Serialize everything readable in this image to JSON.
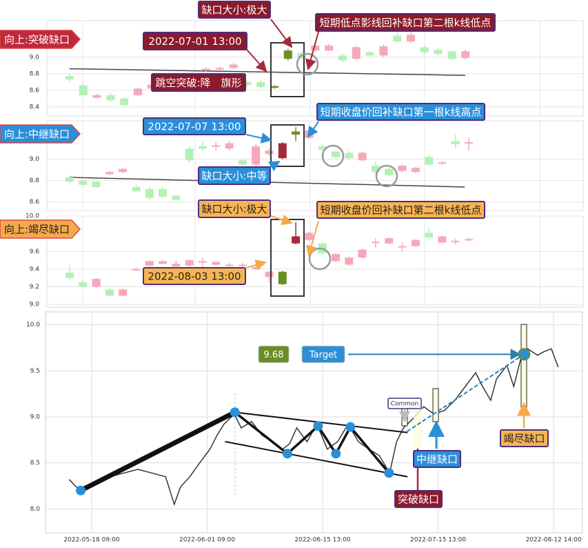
{
  "chart_data": [
    {
      "type": "candlestick",
      "side_label": "向上:突破缺口",
      "labels": [
        "缺口大小:极大",
        "短期低点影线回补缺口第二根k线低点",
        "2022-07-01 13:00",
        "跳空突破:降　旗形"
      ],
      "open": [
        8.77,
        8.66,
        8.51,
        8.54,
        8.5,
        8.54,
        8.62,
        8.7,
        8.74,
        8.78,
        8.84,
        8.85,
        8.87,
        8.7,
        8.7,
        8.65,
        9.08,
        9.05,
        9.08,
        9.08,
        9.02,
        8.98,
        9.06,
        9.02,
        9.26,
        9.19,
        9.12,
        9.09,
        9.07,
        8.99
      ],
      "close": [
        8.73,
        8.54,
        8.54,
        8.48,
        8.42,
        8.62,
        8.67,
        8.74,
        8.78,
        8.8,
        8.86,
        8.87,
        8.91,
        8.66,
        8.64,
        8.63,
        8.98,
        8.99,
        9.14,
        9.14,
        8.96,
        9.12,
        9.02,
        9.13,
        9.19,
        9.27,
        9.06,
        9.04,
        8.98,
        9.07
      ],
      "high": [
        8.8,
        8.68,
        8.56,
        8.57,
        8.52,
        8.63,
        8.68,
        8.76,
        8.8,
        8.82,
        8.88,
        8.89,
        8.93,
        8.72,
        8.72,
        8.66,
        9.1,
        9.07,
        9.16,
        9.16,
        9.04,
        9.14,
        9.08,
        9.15,
        9.3,
        9.3,
        9.14,
        9.11,
        9.09,
        9.09
      ],
      "low": [
        8.7,
        8.52,
        8.5,
        8.46,
        8.41,
        8.53,
        8.61,
        8.69,
        8.73,
        8.77,
        8.83,
        8.84,
        8.86,
        8.64,
        8.62,
        8.62,
        8.96,
        8.97,
        9.07,
        9.07,
        8.94,
        8.96,
        9.0,
        9.0,
        9.17,
        9.17,
        9.04,
        9.02,
        8.96,
        8.97
      ],
      "highlight": [
        15,
        16
      ],
      "up_color": "#f7a8b8",
      "down_color": "#b4f0b4",
      "highlight_up_color": "#a52a3a",
      "highlight_down_color": "#6b8e23",
      "trend_line": {
        "x": [
          0,
          29
        ],
        "y": [
          8.86,
          8.78
        ]
      },
      "ylim": [
        8.29,
        9.44
      ],
      "yticks": [
        8.4,
        8.6,
        8.8,
        {
          "value": 9,
          "label": "9.0"
        }
      ]
    },
    {
      "type": "candlestick",
      "side_label": "向上:中继缺口",
      "labels": [
        "2022-07-07 13:00",
        "短期收盘价回补缺口第一根k线高点",
        "缺口大小:中等"
      ],
      "open": [
        8.83,
        8.8,
        8.79,
        8.86,
        8.88,
        8.74,
        8.72,
        8.72,
        8.66,
        9.1,
        9.12,
        9.12,
        9.1,
        8.99,
        8.95,
        9.05,
        9.01,
        9.26,
        9.2,
        9.12,
        9.07,
        9.06,
        8.99,
        8.94,
        8.91,
        8.89,
        8.88,
        9.02,
        8.96,
        9.17,
        9.15
      ],
      "close": [
        8.79,
        8.76,
        8.74,
        8.88,
        8.91,
        8.7,
        8.64,
        8.65,
        8.62,
        8.99,
        9.1,
        9.13,
        9.15,
        8.95,
        9.12,
        9.08,
        9.15,
        9.23,
        9.27,
        9.09,
        9.02,
        9.01,
        9.06,
        8.88,
        8.85,
        8.94,
        8.92,
        8.95,
        8.97,
        9.14,
        9.16
      ],
      "high": [
        8.85,
        8.81,
        8.8,
        8.89,
        8.92,
        8.76,
        8.74,
        8.74,
        8.67,
        9.12,
        9.16,
        9.16,
        9.17,
        9.01,
        9.14,
        9.1,
        9.16,
        9.3,
        9.28,
        9.14,
        9.09,
        9.08,
        9.07,
        8.98,
        8.93,
        8.95,
        8.93,
        9.04,
        8.98,
        9.23,
        9.2
      ],
      "low": [
        8.78,
        8.75,
        8.73,
        8.85,
        8.87,
        8.69,
        8.62,
        8.63,
        8.61,
        8.97,
        9.08,
        9.08,
        9.08,
        8.94,
        8.93,
        9.03,
        9.0,
        9.17,
        9.19,
        9.08,
        9.01,
        9.0,
        8.98,
        8.86,
        8.84,
        8.88,
        8.87,
        8.94,
        8.95,
        9.1,
        9.08
      ],
      "highlight": [
        16,
        17
      ],
      "up_color": "#f7a8b8",
      "down_color": "#b4f0b4",
      "highlight_up_color": "#a52a3a",
      "highlight_down_color": "#6b8e23",
      "trend_line": {
        "x": [
          0,
          29.7
        ],
        "y": [
          8.83,
          8.74
        ]
      },
      "ylim": [
        8.52,
        9.36
      ],
      "yticks": [
        8.6,
        8.8,
        {
          "value": 9,
          "label": "9.0"
        }
      ]
    },
    {
      "type": "candlestick",
      "side_label": "向上:竭尽缺口",
      "labels": [
        "缺口大小:极大",
        "短期收盘价回补缺口第二根k线低点",
        "2022-08-03 13:00"
      ],
      "open": [
        9.36,
        9.25,
        9.2,
        9.17,
        9.1,
        9.39,
        9.44,
        9.46,
        9.43,
        9.44,
        9.48,
        9.45,
        9.44,
        9.44,
        9.4,
        9.31,
        9.37,
        9.69,
        9.73,
        9.69,
        9.49,
        9.45,
        9.53,
        9.7,
        9.69,
        9.65,
        9.66,
        9.81,
        9.7,
        9.71,
        9.73
      ],
      "close": [
        9.3,
        9.2,
        9.29,
        9.1,
        9.17,
        9.4,
        9.49,
        9.49,
        9.46,
        9.5,
        9.49,
        9.48,
        9.45,
        9.45,
        9.42,
        9.37,
        9.23,
        9.77,
        9.81,
        9.58,
        9.57,
        9.53,
        9.62,
        9.71,
        9.75,
        9.66,
        9.73,
        9.76,
        9.77,
        9.72,
        9.74
      ],
      "high": [
        9.44,
        9.27,
        9.3,
        9.18,
        9.18,
        9.42,
        9.5,
        9.5,
        9.5,
        9.51,
        9.53,
        9.49,
        9.47,
        9.47,
        9.44,
        9.38,
        9.38,
        9.93,
        9.82,
        9.71,
        9.58,
        9.54,
        9.63,
        9.75,
        9.76,
        9.7,
        9.74,
        9.87,
        9.78,
        9.74,
        9.76
      ],
      "low": [
        9.28,
        9.19,
        9.19,
        9.09,
        9.09,
        9.38,
        9.43,
        9.45,
        9.42,
        9.43,
        9.41,
        9.44,
        9.42,
        9.43,
        9.39,
        9.25,
        9.22,
        9.68,
        9.72,
        9.56,
        9.48,
        9.44,
        9.52,
        9.64,
        9.68,
        9.6,
        9.65,
        9.74,
        9.69,
        9.68,
        9.71
      ],
      "highlight": [
        16,
        17
      ],
      "up_color": "#f7a8b8",
      "down_color": "#b4f0b4",
      "highlight_up_color": "#a52a3a",
      "highlight_down_color": "#6b8e23",
      "ylim": [
        8.97,
        10.0
      ],
      "yticks": [
        {
          "value": 9,
          "label": "9.0"
        },
        9.2,
        9.4,
        9.6,
        {
          "value": 10,
          "label": "10.0"
        }
      ]
    },
    {
      "type": "line",
      "x": [
        4.1,
        5.3,
        6.5,
        8.8,
        11.2,
        13.6,
        16.0,
        18.4,
        20.8,
        22.3,
        23.4,
        25.0,
        26.7,
        28.5,
        29.7,
        30.9,
        32.7,
        33.9,
        35.7,
        37.5,
        39.3,
        41.1,
        42.3,
        43.5,
        45.3,
        47.0,
        48.8,
        50.6,
        52.4,
        54.2,
        56.0,
        57.8,
        59.6,
        60.8,
        62.0,
        63.8,
        65.5,
        67.3,
        69.1,
        70.9,
        72.7,
        74.5,
        75.7,
        77.1,
        78.1,
        79.9,
        81.1,
        82.3,
        83.5,
        85.2,
        86.4,
        87.6,
        88.8
      ],
      "values": [
        8.32,
        8.24,
        8.2,
        8.28,
        8.35,
        8.39,
        8.43,
        8.39,
        8.35,
        8.05,
        8.24,
        8.35,
        8.5,
        8.65,
        8.8,
        8.92,
        9.03,
        8.88,
        8.95,
        8.8,
        8.73,
        8.65,
        8.71,
        8.88,
        8.73,
        8.92,
        8.65,
        8.73,
        8.92,
        8.73,
        8.65,
        8.58,
        8.39,
        8.73,
        8.88,
        8.99,
        9.11,
        9.03,
        9.07,
        9.18,
        9.33,
        9.48,
        9.33,
        9.18,
        9.41,
        9.56,
        9.33,
        9.63,
        9.74,
        9.67,
        9.71,
        9.74,
        9.54
      ],
      "color": "#333333",
      "pattern_lines": [
        {
          "x": [
            6.1,
            32.8
          ],
          "y": [
            8.2,
            9.05
          ]
        },
        {
          "x": [
            32.8,
            41.9,
            47.2,
            50.3,
            52.8,
            59.5
          ],
          "y": [
            9.05,
            8.6,
            8.9,
            8.6,
            8.89,
            8.39
          ]
        },
        {
          "x": [
            32.8,
            62.6
          ],
          "y": [
            9.05,
            8.83
          ]
        },
        {
          "x": [
            31.2,
            62.6
          ],
          "y": [
            8.73,
            8.35
          ]
        }
      ],
      "pivots": {
        "x": [
          6.1,
          32.8,
          41.9,
          47.2,
          50.3,
          52.8,
          59.5
        ],
        "y": [
          8.2,
          9.05,
          8.6,
          8.9,
          8.6,
          8.89,
          8.39
        ]
      },
      "target": 9.68,
      "target_label": "Target",
      "target_line": {
        "x": [
          62.6,
          82.9
        ],
        "y": [
          8.84,
          9.68
        ]
      },
      "gap_labels": [
        "Common",
        "突破缺口",
        "中继缺口",
        "竭尽缺口"
      ],
      "grid": true,
      "xlim": [
        0,
        93
      ],
      "ylim": [
        7.74,
        10.14
      ],
      "xticks": [
        {
          "value": 8,
          "label": "2022-05-18 09:00"
        },
        {
          "value": 28,
          "label": "2022-06-01 09:00"
        },
        {
          "value": 48,
          "label": "2022-06-15 13:00"
        },
        {
          "value": 68,
          "label": "2022-07-15 13:00"
        },
        {
          "value": 88,
          "label": "2022-08-12 14:00"
        }
      ],
      "yticks": [
        {
          "value": 8,
          "label": "8.0"
        },
        8.5,
        {
          "value": 9,
          "label": "9.0"
        },
        9.5,
        {
          "value": 10,
          "label": "10.0"
        }
      ]
    }
  ]
}
